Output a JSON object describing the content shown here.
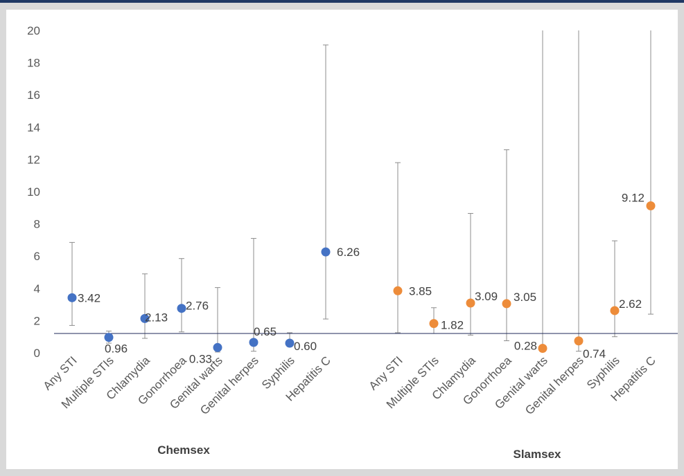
{
  "chart_data": {
    "type": "scatter",
    "ylim": [
      0,
      20
    ],
    "yticks": [
      0,
      2,
      4,
      6,
      8,
      10,
      12,
      14,
      16,
      18,
      20
    ],
    "reference_line": 1.2,
    "grid": false,
    "series": [
      {
        "group": "Chemsex",
        "color": "#4472c4",
        "categories": [
          "Any STI",
          "Multiple STIs",
          "Chlamydia",
          "Gonorrhoea",
          "Genital warts",
          "Genital herpes",
          "Syphilis",
          "Hepatitis C"
        ],
        "values": [
          3.42,
          0.96,
          2.13,
          2.76,
          0.33,
          0.65,
          0.6,
          6.26
        ],
        "labels": [
          "3.42",
          "0.96",
          "2.13",
          "2.76",
          "0.33",
          "0.65",
          "0.60",
          "6.26"
        ],
        "ci_low": [
          1.7,
          0.6,
          0.9,
          1.3,
          0.05,
          0.1,
          0.4,
          2.1
        ],
        "ci_high": [
          6.85,
          1.35,
          4.9,
          5.85,
          4.05,
          7.1,
          1.25,
          19.1
        ]
      },
      {
        "group": "Slamsex",
        "color": "#ed8c3a",
        "categories": [
          "Any STI",
          "Multiple STIs",
          "Chlamydia",
          "Gonorrhoea",
          "Genital warts",
          "Genital herpes",
          "Syphilis",
          "Hepatitis C"
        ],
        "values": [
          3.85,
          1.82,
          3.09,
          3.05,
          0.28,
          0.74,
          2.62,
          9.12
        ],
        "labels": [
          "3.85",
          "1.82",
          "3.09",
          "3.05",
          "0.28",
          "0.74",
          "2.62",
          "9.12"
        ],
        "ci_low": [
          1.25,
          1.2,
          1.1,
          0.75,
          0.1,
          0.1,
          1.0,
          2.4
        ],
        "ci_high": [
          11.8,
          2.8,
          8.65,
          12.6,
          20,
          20,
          6.95,
          20
        ]
      }
    ]
  }
}
